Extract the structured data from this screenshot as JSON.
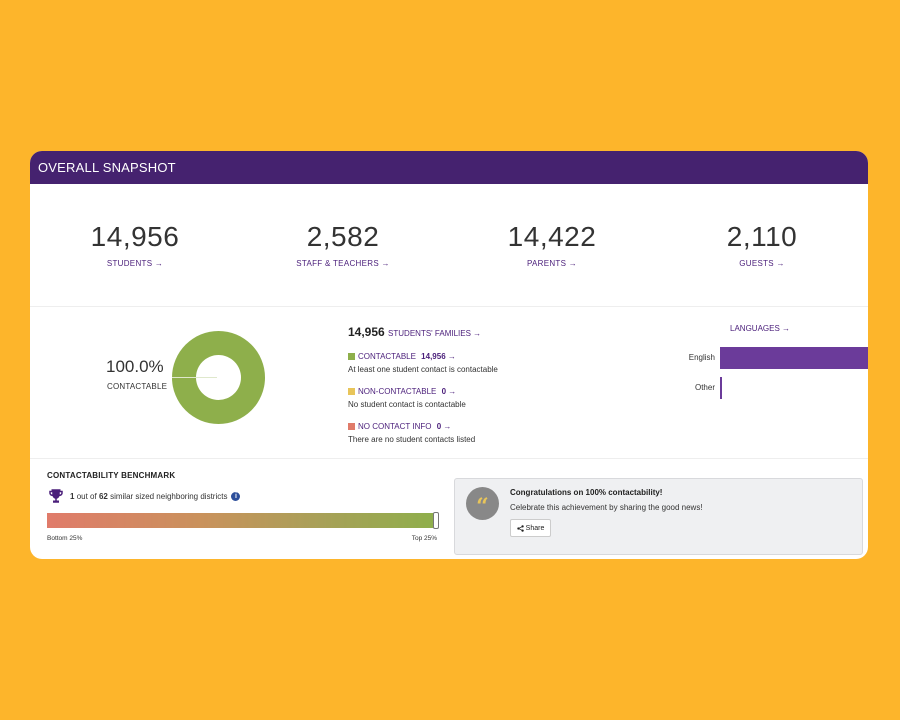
{
  "header": {
    "title": "OVERALL SNAPSHOT"
  },
  "stats": [
    {
      "value": "14,956",
      "label": "STUDENTS →"
    },
    {
      "value": "2,582",
      "label": "STAFF & TEACHERS →"
    },
    {
      "value": "14,422",
      "label": "PARENTS →"
    },
    {
      "value": "2,110",
      "label": "GUESTS →"
    }
  ],
  "contactable": {
    "percent": "100.0%",
    "label": "CONTACTABLE",
    "fraction": 1.0,
    "color": "#8EAF4B"
  },
  "families": {
    "count": "14,956",
    "link": "STUDENTS' FAMILIES →",
    "categories": [
      {
        "label": "CONTACTABLE",
        "count": "14,956",
        "arrow": "→",
        "desc": "At least one student contact is contactable",
        "color": "#8EAF4B"
      },
      {
        "label": "NON-CONTACTABLE",
        "count": "0",
        "arrow": "→",
        "desc": "No student contact is contactable",
        "color": "#E8C55A"
      },
      {
        "label": "NO CONTACT INFO",
        "count": "0",
        "arrow": "→",
        "desc": "There are no student contacts listed",
        "color": "#E07B6A"
      }
    ]
  },
  "languages": {
    "title": "LANGUAGES →",
    "items": [
      {
        "name": "English",
        "share": 0.99
      },
      {
        "name": "Other",
        "share": 0.01
      }
    ],
    "bar_color": "#6B3B9A"
  },
  "benchmark": {
    "title": "CONTACTABILITY BENCHMARK",
    "rank": "1",
    "out_of_text": "out of",
    "total": "62",
    "suffix": "similar sized neighboring districts",
    "info_icon": "i",
    "position": 1.0,
    "bottom_label": "Bottom 25%",
    "top_label": "Top 25%"
  },
  "congrats": {
    "title": "Congratulations on 100% contactability!",
    "subtitle": "Celebrate this achievement by sharing the good news!",
    "share_label": "Share",
    "quote_glyph": "“"
  },
  "colors": {
    "header": "#45226F",
    "accent": "#4A1E7A",
    "background": "#FDB52B"
  }
}
